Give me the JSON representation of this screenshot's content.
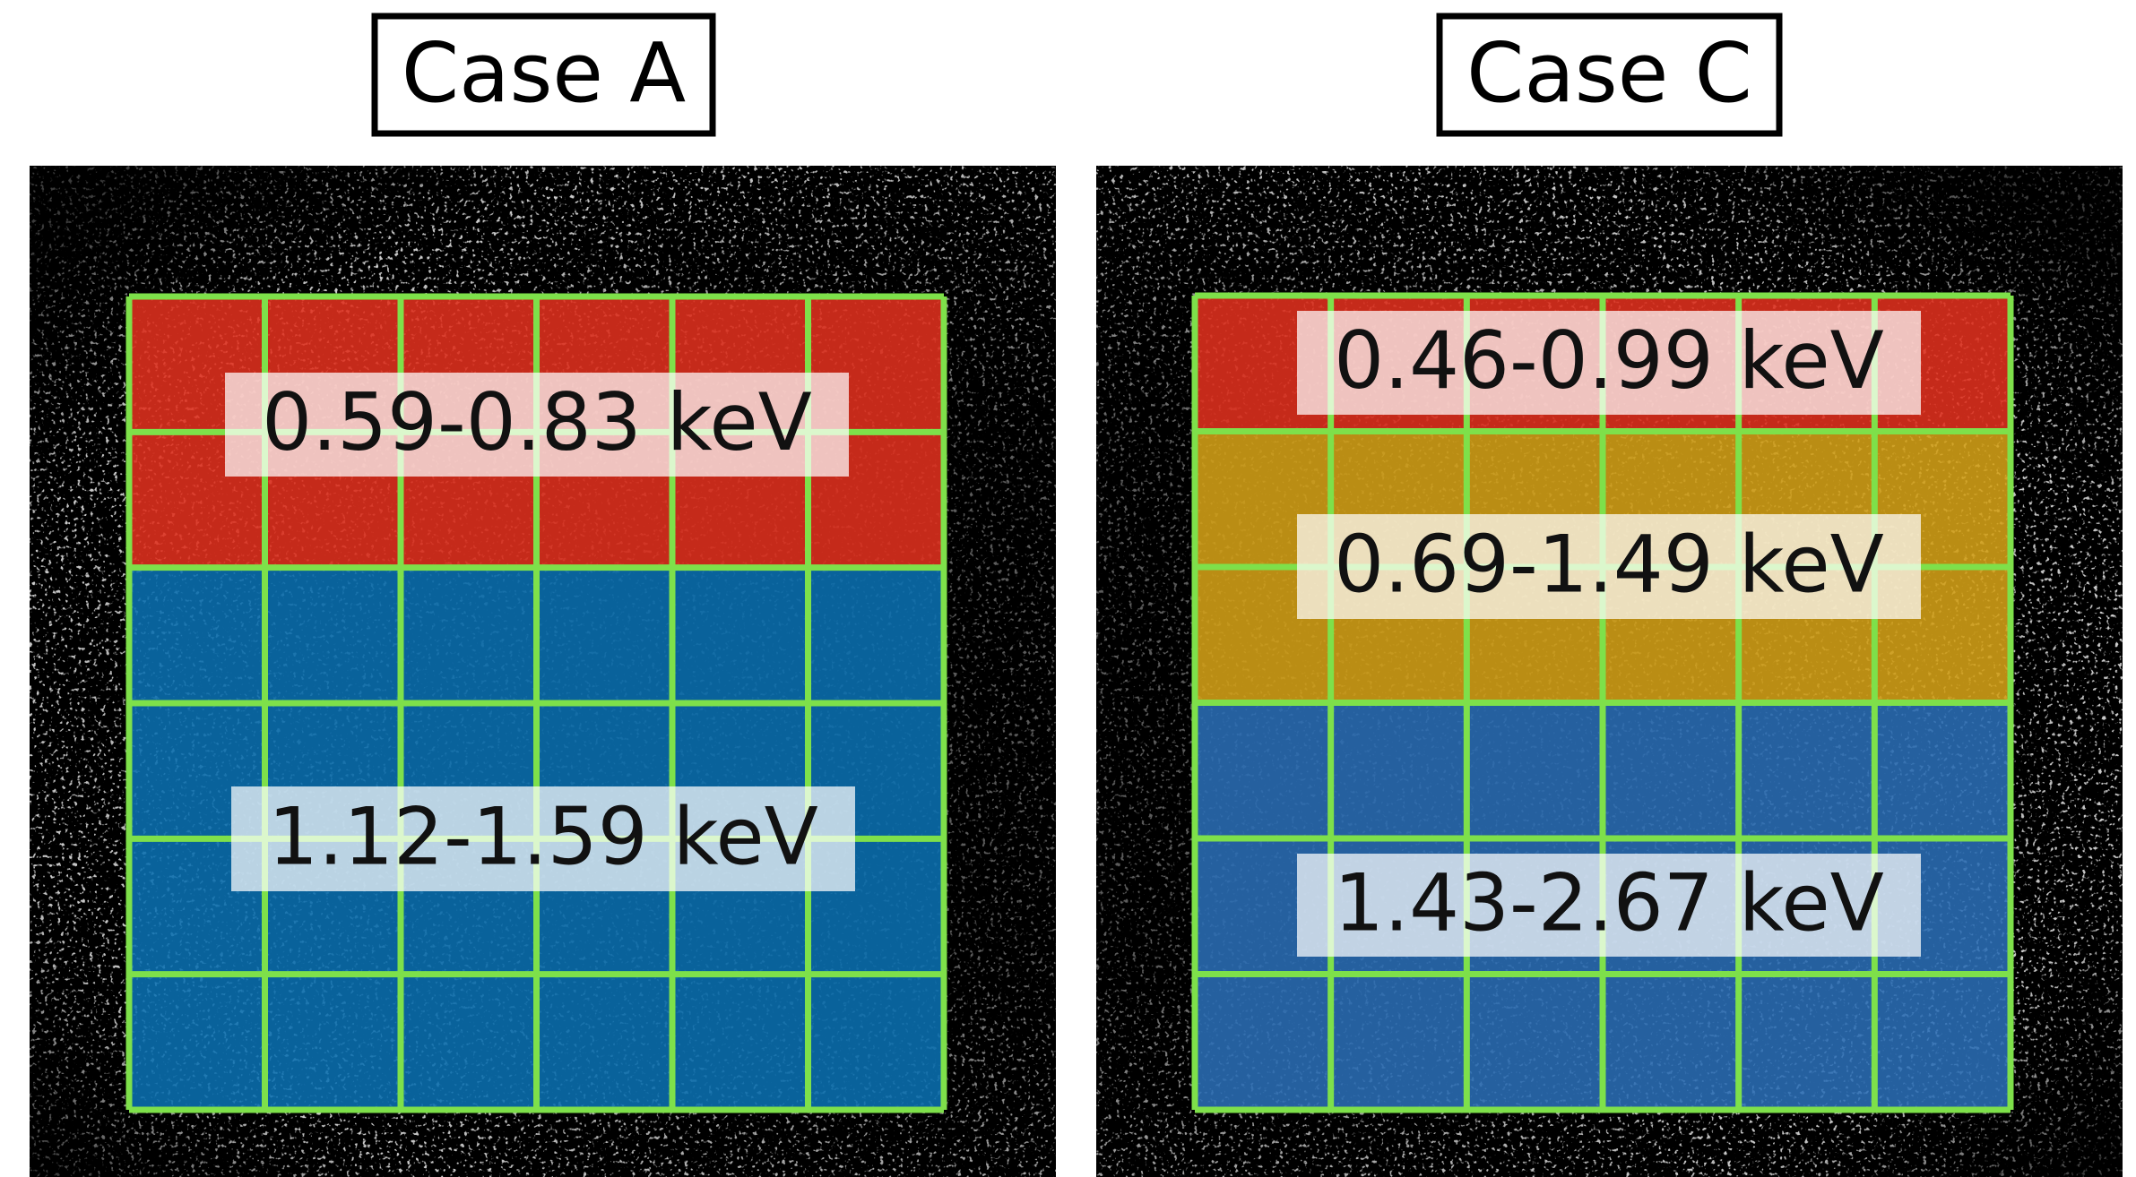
{
  "panels": [
    {
      "title": "Case A",
      "bands": [
        {
          "label": "0.59-0.83 keV"
        },
        {
          "label": "1.12-1.59 keV"
        }
      ]
    },
    {
      "title": "Case C",
      "bands": [
        {
          "label": "0.46-0.99 keV"
        },
        {
          "label": "0.69-1.49 keV"
        },
        {
          "label": "1.43-2.67 keV"
        }
      ]
    }
  ]
}
